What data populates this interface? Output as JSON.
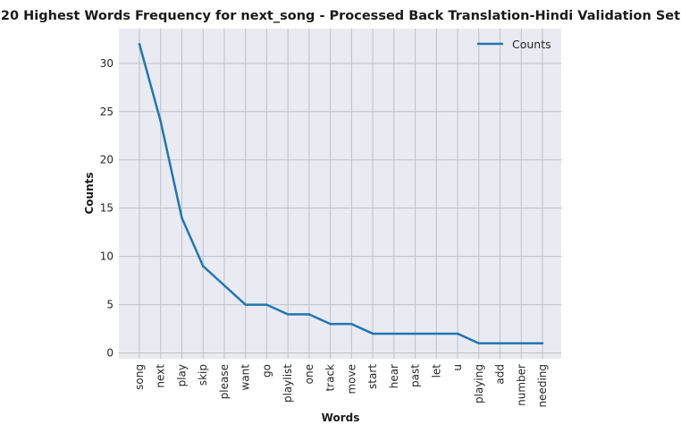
{
  "chart_data": {
    "type": "line",
    "title": "20 Highest Words Frequency for next_song - Processed Back Translation-Hindi Validation Set",
    "xlabel": "Words",
    "ylabel": "Counts",
    "categories": [
      "song",
      "next",
      "play",
      "skip",
      "please",
      "want",
      "go",
      "playlist",
      "one",
      "track",
      "move",
      "start",
      "hear",
      "past",
      "let",
      "u",
      "playing",
      "add",
      "number",
      "needing"
    ],
    "series": [
      {
        "name": "Counts",
        "values": [
          32,
          24,
          14,
          9,
          7,
          5,
          5,
          4,
          4,
          3,
          3,
          2,
          2,
          2,
          2,
          2,
          1,
          1,
          1,
          1
        ]
      }
    ],
    "ylim": [
      -0.6,
      33.6
    ],
    "yticks": [
      0,
      5,
      10,
      15,
      20,
      25,
      30
    ],
    "grid": true,
    "legend_position": "top-right",
    "colors": {
      "line": "#1f77b4",
      "plot_background": "#eaeaf2",
      "grid": "#c0c0c8"
    }
  }
}
